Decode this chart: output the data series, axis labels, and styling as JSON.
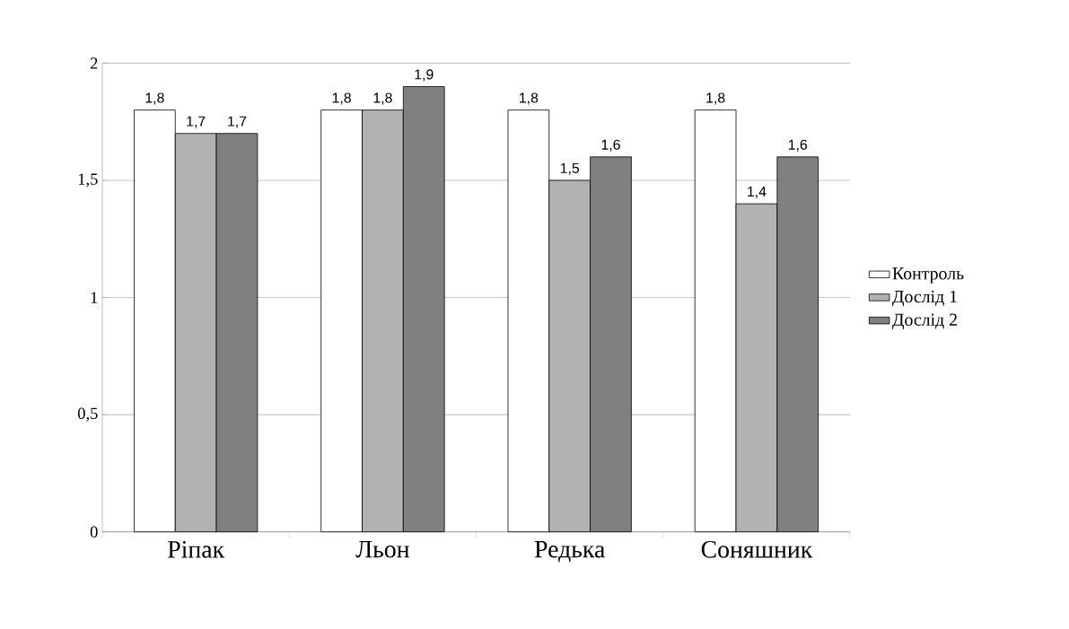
{
  "chart_data": {
    "type": "bar",
    "categories": [
      "Ріпак",
      "Льон",
      "Редька",
      "Соняшник"
    ],
    "series": [
      {
        "name": "Контроль",
        "color": "#ffffff",
        "values": [
          1.8,
          1.8,
          1.8,
          1.8
        ],
        "value_labels": [
          "1,8",
          "1,8",
          "1,8",
          "1,8"
        ]
      },
      {
        "name": "Дослід 1",
        "color": "#b2b2b2",
        "values": [
          1.7,
          1.8,
          1.5,
          1.4
        ],
        "value_labels": [
          "1,7",
          "1,8",
          "1,5",
          "1,4"
        ]
      },
      {
        "name": "Дослід 2",
        "color": "#808080",
        "values": [
          1.7,
          1.9,
          1.6,
          1.6
        ],
        "value_labels": [
          "1,7",
          "1,9",
          "1,6",
          "1,6"
        ]
      }
    ],
    "ylim": [
      0,
      2
    ],
    "yticks": [
      0,
      {
        "value": 0.5,
        "label": "0,5"
      },
      1,
      {
        "value": 1.5,
        "label": "1,5"
      },
      2
    ],
    "grid": "y",
    "legend": "right"
  }
}
